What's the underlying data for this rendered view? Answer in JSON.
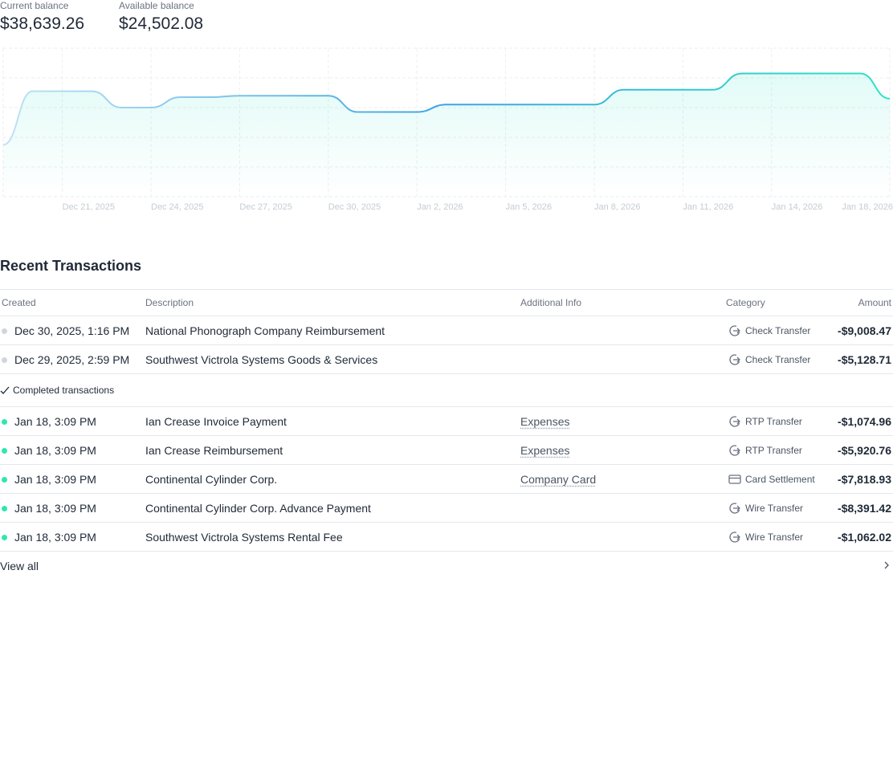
{
  "balances": [
    {
      "label": "Current balance",
      "amount": "$38,639.26"
    },
    {
      "label": "Available balance",
      "amount": "$24,502.08"
    }
  ],
  "chart_data": {
    "type": "line",
    "x": [
      "Dec 19, 2025",
      "Dec 20, 2025",
      "Dec 21, 2025",
      "Dec 22, 2025",
      "Dec 23, 2025",
      "Dec 24, 2025",
      "Dec 25, 2025",
      "Dec 26, 2025",
      "Dec 27, 2025",
      "Dec 28, 2025",
      "Dec 29, 2025",
      "Dec 30, 2025",
      "Dec 31, 2025",
      "Jan 1, 2026",
      "Jan 2, 2026",
      "Jan 3, 2026",
      "Jan 4, 2026",
      "Jan 5, 2026",
      "Jan 6, 2026",
      "Jan 7, 2026",
      "Jan 8, 2026",
      "Jan 9, 2026",
      "Jan 10, 2026",
      "Jan 11, 2026",
      "Jan 12, 2026",
      "Jan 13, 2026",
      "Jan 14, 2026",
      "Jan 15, 2026",
      "Jan 16, 2026",
      "Jan 17, 2026",
      "Jan 18, 2026"
    ],
    "values": [
      35,
      71,
      71,
      71,
      60,
      60,
      67,
      67,
      68,
      68,
      68,
      68,
      57,
      57,
      57,
      62,
      62,
      62,
      62,
      62,
      62,
      72,
      72,
      72,
      72,
      83,
      83,
      83,
      83,
      83,
      66
    ],
    "xticks": [
      "Dec 21, 2025",
      "Dec 24, 2025",
      "Dec 27, 2025",
      "Dec 30, 2025",
      "Jan 2, 2026",
      "Jan 5, 2026",
      "Jan 8, 2026",
      "Jan 11, 2026",
      "Jan 14, 2026",
      "Jan 18, 2026"
    ],
    "ylim": [
      0,
      100
    ],
    "color": [
      "#c2e2f5",
      "#3ea3e2",
      "#2ee3c4"
    ],
    "grid": true
  },
  "transactions": {
    "title": "Recent Transactions",
    "columns": [
      "Created",
      "Description",
      "Additional Info",
      "Category",
      "Amount"
    ],
    "pending": [
      {
        "created": "Dec 30, 2025, 1:16 PM",
        "description": "National Phonograph Company Reimbursement",
        "category": "Check Transfer",
        "amount": "-$9,008.47"
      },
      {
        "created": "Dec 29, 2025, 2:59 PM",
        "description": "Southwest Victrola Systems Goods & Services",
        "category": "Check Transfer",
        "amount": "-$5,128.71"
      }
    ],
    "completed_label": "Completed transactions",
    "completed": [
      {
        "created": "Jan 18, 3:09 PM",
        "description": "Ian Crease Invoice Payment",
        "additional_info": "Expenses",
        "category": "RTP Transfer",
        "amount": "-$1,074.96"
      },
      {
        "created": "Jan 18, 3:09 PM",
        "description": "Ian Crease Reimbursement",
        "additional_info": "Expenses",
        "category": "RTP Transfer",
        "amount": "-$5,920.76"
      },
      {
        "created": "Jan 18, 3:09 PM",
        "description": "Continental Cylinder Corp.",
        "additional_info": "Company Card",
        "category": "Card Settlement",
        "amount": "-$7,818.93"
      },
      {
        "created": "Jan 18, 3:09 PM",
        "description": "Continental Cylinder Corp. Advance Payment",
        "category": "Wire Transfer",
        "amount": "-$8,391.42"
      },
      {
        "created": "Jan 18, 3:09 PM",
        "description": "Southwest Victrola Systems Rental Fee",
        "category": "Wire Transfer",
        "amount": "-$1,062.02"
      }
    ],
    "view_all": "View all"
  }
}
